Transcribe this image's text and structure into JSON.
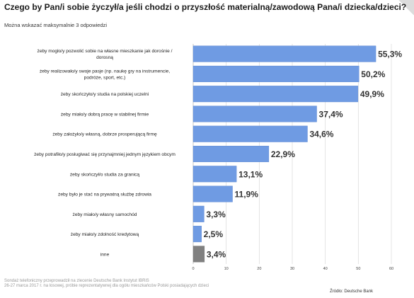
{
  "header": {
    "title": "Czego by Pan/i sobie życzył/a jeśli chodzi o przyszłość materialną/zawodową Pana/i dziecka/dzieci?",
    "subtitle": "Można wskazać maksymalnie 3 odpowiedzi"
  },
  "footer": {
    "note_line1": "Sondaż telefoniczny przeprowadził na zlecenie Deutsche Bank Instytut IBRiS",
    "note_line2": "26-27 marca 2017 r. na losowej, próbie reprezentatywnej dla ogółu mieszkańców Polski posiadających dzieci",
    "source": "Źródło: Deutsche Bank"
  },
  "colors": {
    "bar": "#6f9be3",
    "bar_other": "#808080",
    "bar_stroke": "#5a85cf"
  },
  "chart_data": {
    "type": "bar",
    "orientation": "horizontal",
    "categories": [
      [
        "żeby mogło/y pozwolić sobie na własne mieszkanie jak dorośnie /",
        "dorosną"
      ],
      [
        "żeby realizowało/y swoje pasje (np. naukę gry na instrumencie,",
        "podróże, sport, etc.)"
      ],
      [
        "żeby skończyło/y studia na polskiej uczelni"
      ],
      [
        "żeby miało/y dobrą pracę w stabilnej firmie"
      ],
      [
        "żeby założyło/y własną, dobrze prosperującą firmę"
      ],
      [
        "żeby potrafiło/y posługiwać się przynajmniej jednym językiem obcym"
      ],
      [
        "żeby skończył/o studia za granicą"
      ],
      [
        "żeby było je stać na prywatną służbę zdrowia"
      ],
      [
        "żeby miało/y własny samochód"
      ],
      [
        "żeby miało/y zdolność kredytową"
      ],
      [
        "inne"
      ]
    ],
    "values": [
      55.3,
      50.2,
      49.9,
      37.4,
      34.6,
      22.9,
      13.1,
      11.9,
      3.3,
      2.5,
      3.4
    ],
    "data_labels": [
      "55,3%",
      "50,2%",
      "49,9%",
      "37,4%",
      "34,6%",
      "22,9%",
      "13,1%",
      "11,9%",
      "3,3%",
      "2,5%",
      "3,4%"
    ],
    "xlim": [
      0,
      60
    ],
    "xticks": [
      0,
      10,
      20,
      30,
      40,
      50,
      60
    ],
    "grid": true,
    "legend": "none"
  }
}
